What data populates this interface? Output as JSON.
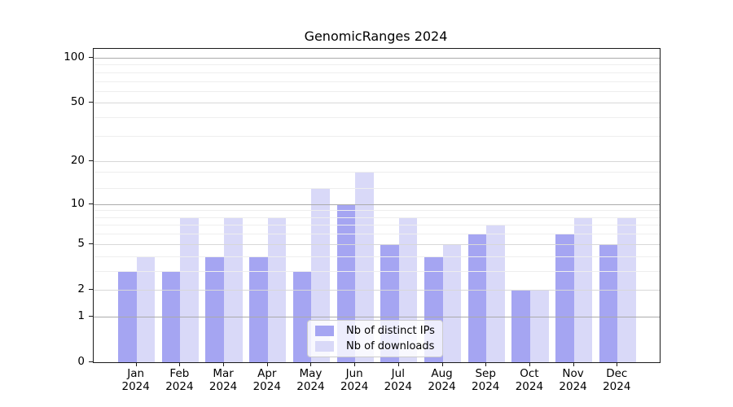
{
  "figure": {
    "title": "GenomicRanges 2024"
  },
  "y_axis": {
    "tick_labels": [
      "0",
      "1",
      "2",
      "5",
      "10",
      "20",
      "50",
      "100"
    ],
    "tick_values": [
      0,
      1,
      2,
      5,
      10,
      20,
      50,
      100
    ]
  },
  "x_axis": {
    "months": [
      "Jan",
      "Feb",
      "Mar",
      "Apr",
      "May",
      "Jun",
      "Jul",
      "Aug",
      "Sep",
      "Oct",
      "Nov",
      "Dec"
    ],
    "year": "2024"
  },
  "legend": {
    "items": [
      {
        "label": "Nb of distinct IPs",
        "color": "#a5a5f2"
      },
      {
        "label": "Nb of downloads",
        "color": "#d9d9f8"
      }
    ]
  },
  "grid": {
    "strong_lines": [
      1,
      10,
      100
    ],
    "medium_lines": [
      2,
      5,
      20,
      50
    ],
    "minor_lines": [
      3,
      4,
      6,
      7,
      8,
      9,
      13,
      17,
      30,
      40,
      60,
      70,
      80,
      90
    ]
  },
  "chart_data": {
    "type": "bar",
    "title": "GenomicRanges 2024",
    "categories": [
      "Jan 2024",
      "Feb 2024",
      "Mar 2024",
      "Apr 2024",
      "May 2024",
      "Jun 2024",
      "Jul 2024",
      "Aug 2024",
      "Sep 2024",
      "Oct 2024",
      "Nov 2024",
      "Dec 2024"
    ],
    "series": [
      {
        "name": "Nb of distinct IPs",
        "color": "#a5a5f2",
        "values": [
          3,
          3,
          4,
          4,
          3,
          10,
          5,
          4,
          6,
          2,
          6,
          5
        ]
      },
      {
        "name": "Nb of downloads",
        "color": "#d9d9f8",
        "values": [
          4,
          8,
          8,
          8,
          13,
          17,
          8,
          5,
          7,
          2,
          8,
          8
        ]
      }
    ],
    "yscale": "log1p",
    "yticks": [
      0,
      1,
      2,
      5,
      10,
      20,
      50,
      100
    ],
    "ylim": [
      0,
      103
    ],
    "xlabel": "",
    "ylabel": "",
    "grid": "horizontal, drawn over bars",
    "legend_position": "inside axes, lower center-left"
  }
}
